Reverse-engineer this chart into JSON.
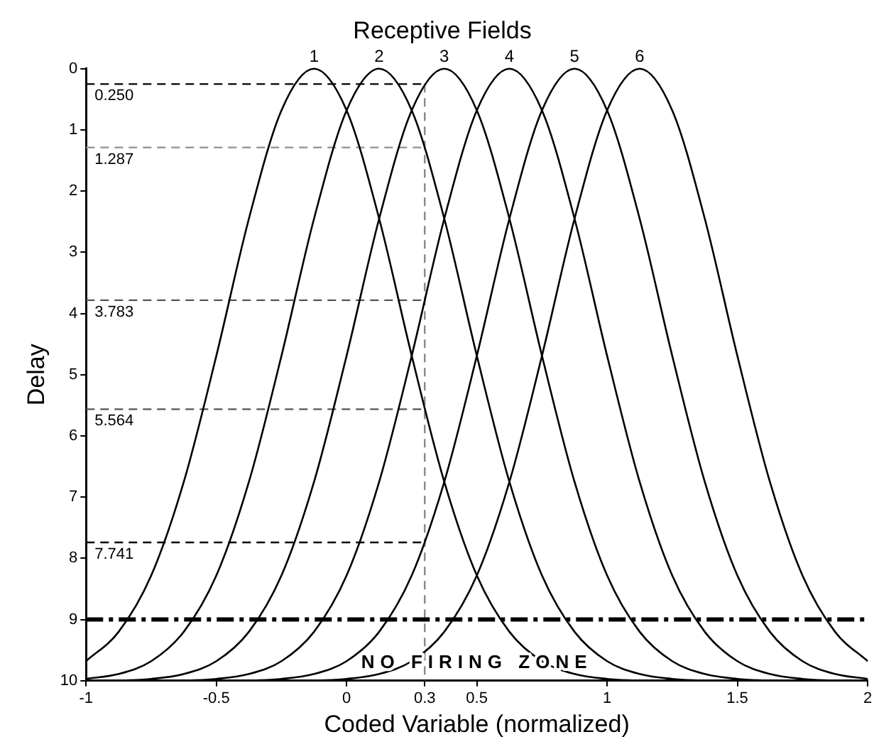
{
  "chart_data": {
    "type": "line",
    "title": "Receptive Fields",
    "xlabel": "Coded Variable (normalized)",
    "ylabel": "Delay",
    "series": [
      {
        "name": "1",
        "color": "#000000",
        "x": [
          -1,
          -0.875,
          -0.75,
          -0.625,
          -0.5,
          -0.375,
          -0.25,
          -0.125,
          0,
          0.125,
          0.25,
          0.375,
          0.5,
          0.625,
          0.75,
          0.875,
          1,
          1.125
        ],
        "values": [
          9.68,
          9.2,
          8.28,
          6.75,
          4.69,
          2.45,
          0.68,
          0,
          0.68,
          2.45,
          4.69,
          6.75,
          8.28,
          9.2,
          9.68,
          9.89,
          9.97,
          10
        ]
      },
      {
        "name": "2",
        "color": "#000000",
        "x": [
          -1,
          -0.875,
          -0.75,
          -0.625,
          -0.5,
          -0.375,
          -0.25,
          -0.125,
          0,
          0.125,
          0.25,
          0.375,
          0.5,
          0.625,
          0.75,
          0.875,
          1,
          1.125,
          1.25,
          1.375
        ],
        "values": [
          9.97,
          9.89,
          9.68,
          9.2,
          8.28,
          6.75,
          4.69,
          2.45,
          0.68,
          0,
          0.68,
          2.45,
          4.69,
          6.75,
          8.28,
          9.2,
          9.68,
          9.89,
          9.97,
          10
        ]
      },
      {
        "name": "3",
        "color": "#000000",
        "x": [
          -0.875,
          -0.75,
          -0.625,
          -0.5,
          -0.375,
          -0.25,
          -0.125,
          0,
          0.125,
          0.25,
          0.375,
          0.5,
          0.625,
          0.75,
          0.875,
          1,
          1.125,
          1.25,
          1.375,
          1.5,
          1.625
        ],
        "values": [
          10,
          9.97,
          9.89,
          9.68,
          9.2,
          8.28,
          6.75,
          4.69,
          2.45,
          0.68,
          0,
          0.68,
          2.45,
          4.69,
          6.75,
          8.28,
          9.2,
          9.68,
          9.89,
          9.97,
          10
        ]
      },
      {
        "name": "4",
        "color": "#000000",
        "x": [
          -0.625,
          -0.5,
          -0.375,
          -0.25,
          -0.125,
          0,
          0.125,
          0.25,
          0.375,
          0.5,
          0.625,
          0.75,
          0.875,
          1,
          1.125,
          1.25,
          1.375,
          1.5,
          1.625,
          1.75,
          1.875
        ],
        "values": [
          10,
          9.97,
          9.89,
          9.68,
          9.2,
          8.28,
          6.75,
          4.69,
          2.45,
          0.68,
          0,
          0.68,
          2.45,
          4.69,
          6.75,
          8.28,
          9.2,
          9.68,
          9.89,
          9.97,
          10
        ]
      },
      {
        "name": "5",
        "color": "#000000",
        "x": [
          -0.375,
          -0.25,
          -0.125,
          0,
          0.125,
          0.25,
          0.375,
          0.5,
          0.625,
          0.75,
          0.875,
          1,
          1.125,
          1.25,
          1.375,
          1.5,
          1.625,
          1.75,
          1.875,
          2
        ],
        "values": [
          10,
          9.97,
          9.89,
          9.68,
          9.2,
          8.28,
          6.75,
          4.69,
          2.45,
          0.68,
          0,
          0.68,
          2.45,
          4.69,
          6.75,
          8.28,
          9.2,
          9.68,
          9.89,
          9.97
        ]
      },
      {
        "name": "6",
        "color": "#000000",
        "x": [
          -0.125,
          0,
          0.125,
          0.25,
          0.375,
          0.5,
          0.625,
          0.75,
          0.875,
          1,
          1.125,
          1.25,
          1.375,
          1.5,
          1.625,
          1.75,
          1.875,
          2
        ],
        "values": [
          10,
          9.97,
          9.89,
          9.68,
          9.2,
          8.28,
          6.75,
          4.69,
          2.45,
          0.68,
          0,
          0.68,
          2.45,
          4.69,
          6.75,
          8.28,
          9.2,
          9.68
        ]
      },
      {
        "color": "#000000",
        "line_style": "dashed",
        "x": [
          -1,
          0.3
        ],
        "values": [
          0.25,
          0.25
        ]
      },
      {
        "color": "#999999",
        "line_style": "dashed",
        "x": [
          -1,
          0.3
        ],
        "values": [
          1.287,
          1.287
        ]
      },
      {
        "color": "#555555",
        "line_style": "dashed",
        "x": [
          -1,
          0.3
        ],
        "values": [
          3.783,
          3.783
        ]
      },
      {
        "color": "#555555",
        "line_style": "dashed",
        "x": [
          -1,
          0.3
        ],
        "values": [
          5.564,
          5.564
        ]
      },
      {
        "color": "#000000",
        "line_style": "dashed",
        "x": [
          -1,
          0.3
        ],
        "values": [
          7.741,
          7.741
        ]
      },
      {
        "color": "#888888",
        "line_style": "dashed",
        "x": [
          0.3,
          0.3
        ],
        "values": [
          0.25,
          10
        ]
      }
    ],
    "annotations": [
      {
        "text": "0.250",
        "y": 0.25
      },
      {
        "text": "1.287",
        "y": 1.287
      },
      {
        "text": "3.783",
        "y": 3.783
      },
      {
        "text": "5.564",
        "y": 5.564
      },
      {
        "text": "7.741",
        "y": 7.741
      },
      "NO FIRING ZONE"
    ],
    "ref_lines": [
      {
        "axis": "y",
        "value": 9,
        "color": "#000000",
        "line_style": "dashed"
      }
    ],
    "xlim": [
      -1,
      2
    ],
    "xticks": [
      -1,
      -0.5,
      0,
      0.3,
      0.5,
      1,
      1.5,
      2
    ],
    "ylim": [
      10,
      0
    ],
    "yticks": [
      0,
      1,
      2,
      3,
      4,
      5,
      6,
      7,
      8,
      9,
      10
    ],
    "grid": false,
    "legend": false,
    "marker": "none",
    "line_style": "solid"
  }
}
